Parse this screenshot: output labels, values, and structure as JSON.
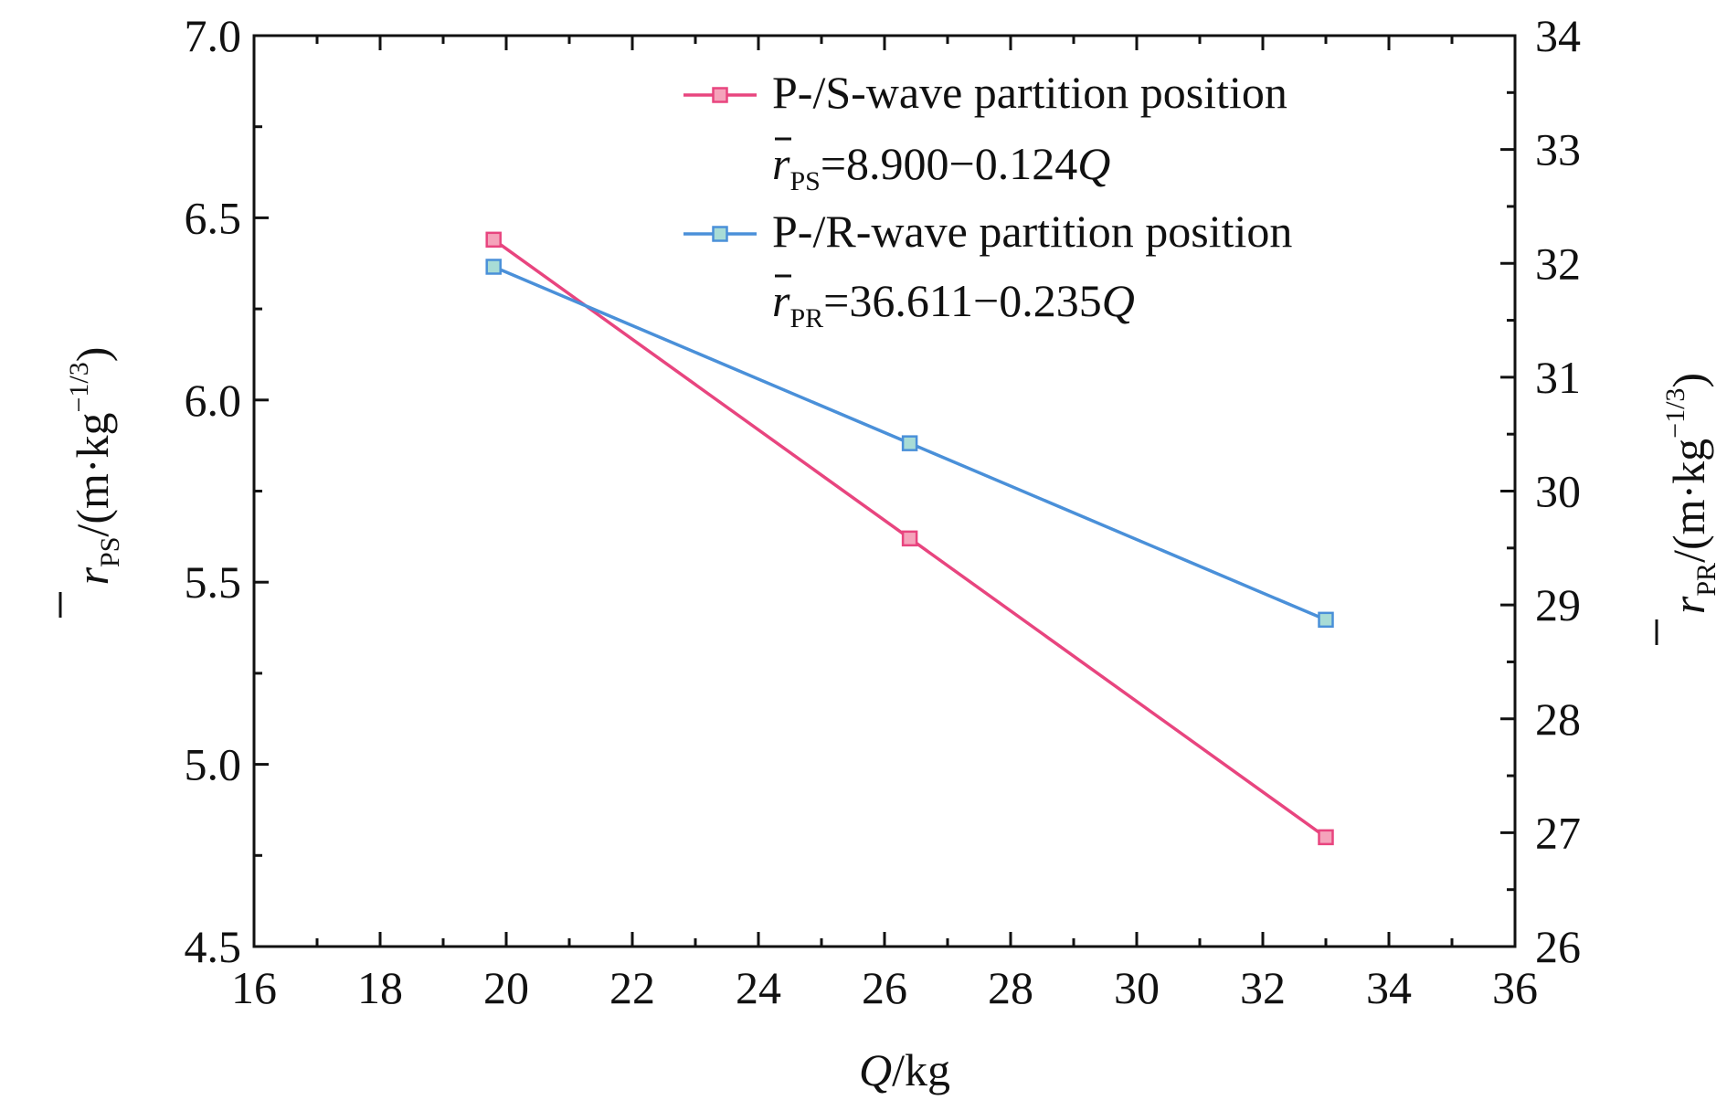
{
  "chart_data": {
    "type": "line",
    "x_axis": {
      "label_prefix": "Q",
      "label_suffix": "/kg",
      "range": [
        16,
        36
      ],
      "ticks": [
        "16",
        "18",
        "20",
        "22",
        "24",
        "26",
        "28",
        "30",
        "32",
        "34",
        "36"
      ]
    },
    "y_axis_left": {
      "label_symbol": "r",
      "label_sub": "PS",
      "label_unit": "/(m·kg",
      "label_sup": "−1/3",
      "label_close": ")",
      "range": [
        4.5,
        7.0
      ],
      "ticks": [
        "4.5",
        "5.0",
        "5.5",
        "6.0",
        "6.5",
        "7.0"
      ]
    },
    "y_axis_right": {
      "label_symbol": "r",
      "label_sub": "PR",
      "label_unit": "/(m·kg",
      "label_sup": "−1/3",
      "label_close": ")",
      "range": [
        26,
        34
      ],
      "ticks": [
        "26",
        "27",
        "28",
        "29",
        "30",
        "31",
        "32",
        "33",
        "34"
      ]
    },
    "series": [
      {
        "name": "P-/S-wave partition position",
        "axis": "left",
        "color": "#e8457f",
        "marker_fill": "#f5a3bb",
        "x": [
          19.8,
          26.4,
          33.0
        ],
        "y": [
          6.44,
          5.62,
          4.8
        ],
        "equation": {
          "symbol": "r",
          "sub": "PS",
          "rhs_start": "=8.900−0.124",
          "rhs_var": "Q"
        }
      },
      {
        "name": "P-/R-wave partition position",
        "axis": "right",
        "color": "#4a90d9",
        "marker_fill": "#a8dcd6",
        "x": [
          19.8,
          26.4,
          33.0
        ],
        "y": [
          31.97,
          30.42,
          28.87
        ],
        "equation": {
          "symbol": "r",
          "sub": "PR",
          "rhs_start": "=36.611−0.235",
          "rhs_var": "Q"
        }
      }
    ],
    "legend_position": "top-right",
    "grid": false
  }
}
